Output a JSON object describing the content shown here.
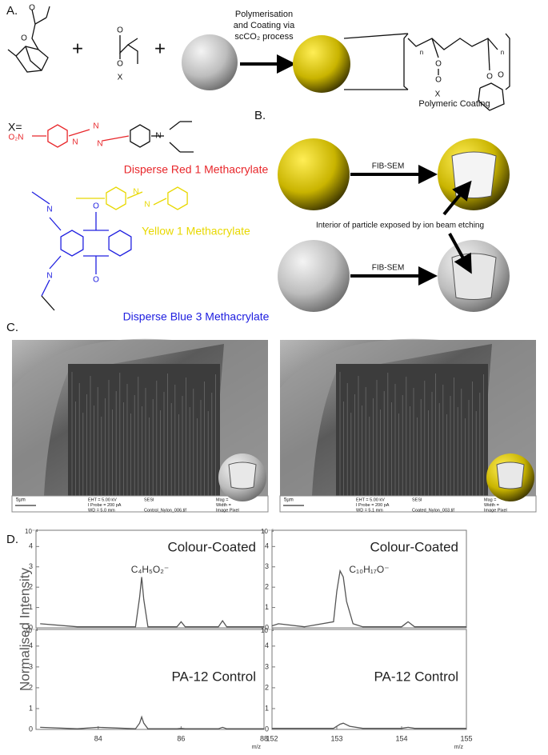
{
  "panel_a": {
    "label": "A.",
    "plus": [
      "+",
      "+"
    ],
    "process": [
      "Polymerisation",
      "and Coating via",
      "scCO₂ process"
    ],
    "coating_label": "Polymeric Coating",
    "atoms": [
      "O",
      "O",
      "O",
      "O",
      "X",
      "O",
      "O",
      "X",
      "n",
      "n",
      "O",
      "O"
    ],
    "x_label": "X=",
    "dyes": [
      "Disperse Red 1 Methacrylate",
      "Yellow 1 Methacrylate",
      "Disperse Blue 3 Methacrylate"
    ],
    "dye_atoms": [
      "O₂N",
      "N",
      "N",
      "N",
      "N",
      "N",
      "N",
      "O",
      "O",
      "N",
      "N"
    ]
  },
  "panel_b": {
    "label": "B.",
    "fib": [
      "FIB-SEM",
      "FIB-SEM"
    ],
    "caption": "Interior of particle exposed by ion beam etching"
  },
  "panel_c": {
    "label": "C.",
    "images": [
      {
        "scale": "5µm",
        "info": [
          "EHT = 5.00 kV",
          "I Probe = 200 pA",
          "WD = 5.0 mm"
        ],
        "detector": "SESI",
        "file": "Control_Nylon_006.tif",
        "right": [
          "Mag =",
          "Width =",
          "Image Pixel"
        ]
      },
      {
        "scale": "5µm",
        "info": [
          "EHT = 5.00 kV",
          "I Probe = 200 pA",
          "WD = 5.1 mm"
        ],
        "detector": "SESI",
        "file": "Coated_Nylon_003.tif",
        "right": [
          "Mag =",
          "Width =",
          "Image Pixel"
        ]
      }
    ]
  },
  "panel_d": {
    "label": "D.",
    "ylabel": "Normalised Intensity"
  },
  "chart_data": [
    {
      "type": "line",
      "title": "Colour-Coated",
      "annotation": "C₄H₅O₂⁻",
      "scale_label": "10⁻⁴",
      "color": "#555555",
      "x": [
        82.6,
        83.5,
        84,
        84.9,
        85.0,
        85.05,
        85.1,
        85.2,
        85.9,
        86.0,
        86.1,
        86.9,
        87.0,
        87.1,
        88
      ],
      "values": [
        0.2,
        0.05,
        0.05,
        0.05,
        1.5,
        2.5,
        1.4,
        0.05,
        0.05,
        0.3,
        0.05,
        0.05,
        0.35,
        0.05,
        0.05
      ],
      "xlim": [
        82.5,
        88
      ],
      "ylim": [
        0,
        4.8
      ],
      "yticks": [
        0,
        1,
        2,
        3,
        4
      ]
    },
    {
      "type": "line",
      "title": "PA-12 Control",
      "scale_label": "10⁻⁴",
      "color": "#555555",
      "xlabel": "m/z",
      "x": [
        82.6,
        83.5,
        84,
        84.9,
        85.0,
        85.05,
        85.1,
        85.2,
        85.9,
        86.0,
        86.1,
        86.9,
        87.0,
        87.1,
        88
      ],
      "values": [
        0.1,
        0.03,
        0.1,
        0.03,
        0.3,
        0.6,
        0.3,
        0.03,
        0.03,
        0.05,
        0.03,
        0.03,
        0.1,
        0.03,
        0.03
      ],
      "xlim": [
        82.5,
        88
      ],
      "ylim": [
        0,
        4.8
      ],
      "yticks": [
        0,
        1,
        2,
        3,
        4
      ],
      "xticks": [
        84,
        86,
        88
      ]
    },
    {
      "type": "line",
      "title": "Colour-Coated",
      "annotation": "C₁₀H₁₇O⁻",
      "scale_label": "10⁻⁵",
      "color": "#555555",
      "x": [
        152,
        152.1,
        152.5,
        152.95,
        153.0,
        153.05,
        153.1,
        153.15,
        153.25,
        153.4,
        154.0,
        154.1,
        154.2,
        155
      ],
      "values": [
        0.1,
        0.2,
        0.05,
        0.3,
        1.8,
        2.8,
        2.5,
        1.3,
        0.2,
        0.05,
        0.05,
        0.3,
        0.05,
        0.05
      ],
      "xlim": [
        152,
        155
      ],
      "ylim": [
        0,
        4.8
      ],
      "yticks": [
        0,
        1,
        2,
        3,
        4
      ]
    },
    {
      "type": "line",
      "title": "PA-12 Control",
      "scale_label": "10⁻⁵",
      "color": "#555555",
      "xlabel": "m/z",
      "x": [
        152,
        152.5,
        152.95,
        153.05,
        153.1,
        153.2,
        153.4,
        154.0,
        154.1,
        154.2,
        155
      ],
      "values": [
        0.05,
        0.05,
        0.05,
        0.25,
        0.3,
        0.15,
        0.05,
        0.05,
        0.1,
        0.05,
        0.05
      ],
      "xlim": [
        152,
        155
      ],
      "ylim": [
        0,
        4.8
      ],
      "yticks": [
        0,
        1,
        2,
        3,
        4
      ],
      "xticks": [
        152,
        153,
        154,
        155
      ]
    }
  ]
}
